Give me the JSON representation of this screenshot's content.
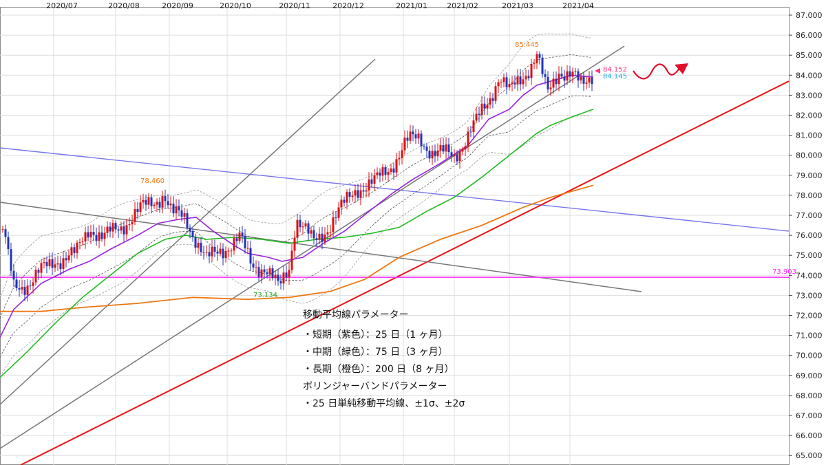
{
  "chart_data": {
    "type": "candlestick",
    "x_months": [
      "2020/07",
      "2020/08",
      "2020/09",
      "2020/10",
      "2020/11",
      "2020/12",
      "2021/01",
      "2021/02",
      "2021/03",
      "2021/04"
    ],
    "y_ticks": [
      "87.000",
      "86.000",
      "85.000",
      "84.000",
      "83.000",
      "82.000",
      "81.000",
      "80.000",
      "79.000",
      "78.000",
      "77.000",
      "76.000",
      "75.000",
      "74.000",
      "73.000",
      "72.000",
      "71.000",
      "70.000",
      "69.000",
      "68.000",
      "67.000",
      "66.000",
      "65.000"
    ],
    "ylim": [
      64.7,
      87.5
    ],
    "grid": true,
    "colors": {
      "up": "#dd1111",
      "down": "#2233bb",
      "ma25": "#9922dd",
      "ma75": "#22bb22",
      "ma200": "#ee7711",
      "level_line": "#ff22ff",
      "blue_trend": "#7777ee",
      "red_trend": "#ee1111",
      "gray_trend": "#777777"
    },
    "annotations": [
      {
        "label": "85.445",
        "color": "#ee7711",
        "x_date": "2021/03 (mid)",
        "y": 85.445
      },
      {
        "label": "78.460",
        "color": "#ee7711",
        "x_date": "2020/08 (late)",
        "y": 78.46
      },
      {
        "label": "73.134",
        "color": "#22aa22",
        "x_date": "2020/11 (early)",
        "y": 73.134
      },
      {
        "label": "84.152",
        "color": "#ff3377",
        "x_date": "2021/04 (mid)",
        "y": 84.152
      },
      {
        "label": "84.145",
        "color": "#22aadd",
        "x_date": "2021/04 (mid)",
        "y": 84.145
      },
      {
        "label": "73.903",
        "color": "#ff22ff",
        "x_date": "axis",
        "y": 73.903
      }
    ],
    "notes": [
      "移動平均線パラメーター",
      "・短期（紫色）：25 日（1 ヶ月）",
      "・中期（緑色）：75 日（3 ヶ月）",
      "・長期（橙色）：200 日（8 ヶ月）",
      "ボリンジャーバンドパラメーター",
      "・25 日単純移動平均線、±1σ、±2σ"
    ],
    "ma25": [
      [
        0,
        70.9
      ],
      [
        20,
        72.3
      ],
      [
        60,
        73.6
      ],
      [
        100,
        74.3
      ],
      [
        130,
        74.7
      ],
      [
        160,
        75.3
      ],
      [
        200,
        76.0
      ],
      [
        230,
        76.6
      ],
      [
        260,
        76.8
      ],
      [
        285,
        76.9
      ],
      [
        310,
        76.2
      ],
      [
        340,
        75.5
      ],
      [
        360,
        75.1
      ],
      [
        390,
        74.9
      ],
      [
        410,
        74.7
      ],
      [
        440,
        74.9
      ],
      [
        470,
        75.6
      ],
      [
        500,
        76.2
      ],
      [
        540,
        77.3
      ],
      [
        570,
        78.1
      ],
      [
        600,
        78.8
      ],
      [
        640,
        79.6
      ],
      [
        680,
        80.5
      ],
      [
        710,
        81.8
      ],
      [
        740,
        82.3
      ],
      [
        760,
        83.0
      ],
      [
        780,
        83.5
      ],
      [
        800,
        83.7
      ],
      [
        830,
        84.0
      ],
      [
        862,
        83.9
      ]
    ],
    "ma75": [
      [
        0,
        68.9
      ],
      [
        40,
        70.2
      ],
      [
        80,
        71.6
      ],
      [
        120,
        72.9
      ],
      [
        160,
        74.0
      ],
      [
        200,
        75.1
      ],
      [
        240,
        75.8
      ],
      [
        270,
        76.0
      ],
      [
        300,
        75.8
      ],
      [
        340,
        75.9
      ],
      [
        380,
        75.8
      ],
      [
        420,
        75.6
      ],
      [
        460,
        75.8
      ],
      [
        500,
        75.9
      ],
      [
        540,
        76.1
      ],
      [
        580,
        76.4
      ],
      [
        620,
        77.2
      ],
      [
        660,
        77.9
      ],
      [
        700,
        78.9
      ],
      [
        740,
        80.0
      ],
      [
        780,
        81.1
      ],
      [
        800,
        81.5
      ],
      [
        830,
        81.9
      ],
      [
        862,
        82.3
      ]
    ],
    "ma200": [
      [
        0,
        72.2
      ],
      [
        60,
        72.2
      ],
      [
        120,
        72.4
      ],
      [
        200,
        72.6
      ],
      [
        280,
        72.9
      ],
      [
        360,
        72.8
      ],
      [
        420,
        72.9
      ],
      [
        480,
        73.2
      ],
      [
        530,
        73.8
      ],
      [
        580,
        74.9
      ],
      [
        640,
        75.8
      ],
      [
        700,
        76.5
      ],
      [
        760,
        77.4
      ],
      [
        800,
        77.9
      ],
      [
        862,
        78.5
      ]
    ]
  }
}
